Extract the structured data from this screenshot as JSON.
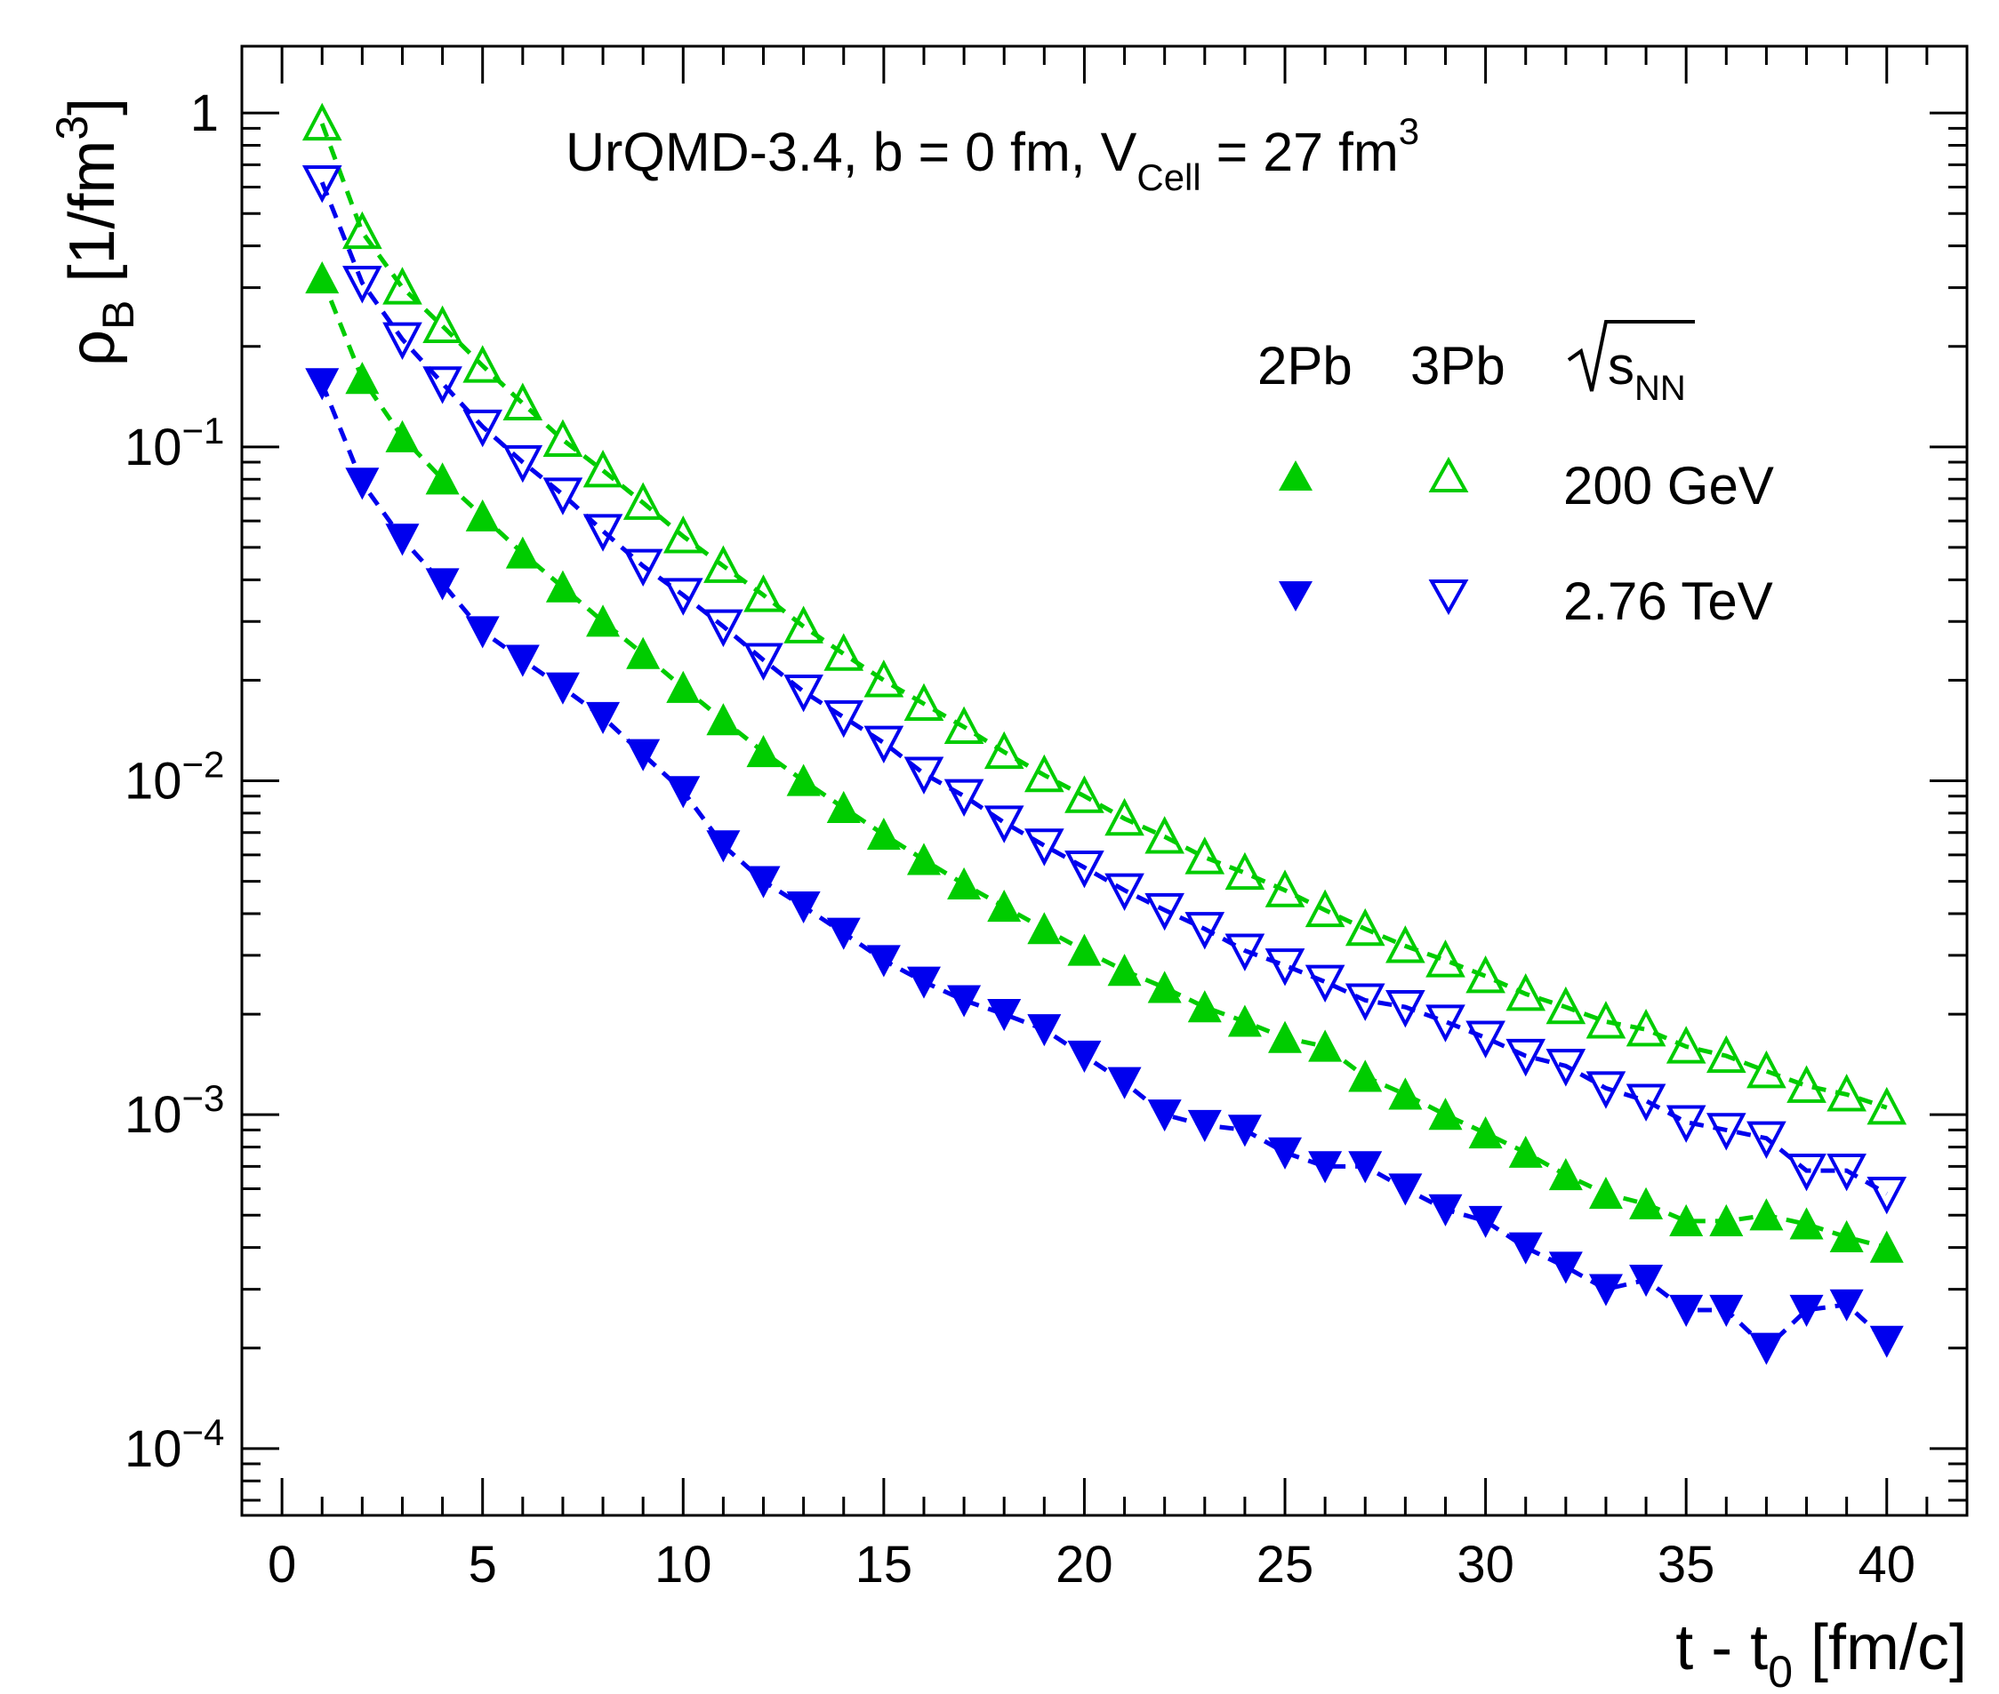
{
  "chart_data": {
    "type": "scatter",
    "title_parts": {
      "main": "UrQMD-3.4, b = 0 fm, V",
      "sub": "Cell",
      "rest": " = 27 fm",
      "sup": "3"
    },
    "xlabel_parts": {
      "main": "t - t",
      "sub": "0",
      "rest": " [fm/c]"
    },
    "ylabel_parts": {
      "main": "ρ",
      "sub": "B",
      "rest": " [1/fm",
      "sup": "3",
      "end": "]"
    },
    "xlim": [
      -1,
      42
    ],
    "ylim_log10": [
      -4.2,
      0.2
    ],
    "x_ticks": [
      0,
      5,
      10,
      15,
      20,
      25,
      30,
      35,
      40
    ],
    "x_tick_labels": [
      "0",
      "5",
      "10",
      "15",
      "20",
      "25",
      "30",
      "35",
      "40"
    ],
    "y_ticks_log10": [
      0,
      -1,
      -2,
      -3,
      -4
    ],
    "y_tick_labels": [
      {
        "base": "1",
        "exp": ""
      },
      {
        "base": "10",
        "exp": "−1"
      },
      {
        "base": "10",
        "exp": "−2"
      },
      {
        "base": "10",
        "exp": "−3"
      },
      {
        "base": "10",
        "exp": "−4"
      }
    ],
    "legend": {
      "col1": "2Pb",
      "col2": "3Pb",
      "col3_base": "s",
      "col3_sub": "NN",
      "row1": "200 GeV",
      "row2": "2.76 TeV"
    },
    "x": [
      1,
      2,
      3,
      4,
      5,
      6,
      7,
      8,
      9,
      10,
      11,
      12,
      13,
      14,
      15,
      16,
      17,
      18,
      19,
      20,
      21,
      22,
      23,
      24,
      25,
      26,
      27,
      28,
      29,
      30,
      31,
      32,
      33,
      34,
      35,
      36,
      37,
      38,
      39,
      40
    ],
    "series": [
      {
        "name": "2Pb 200 GeV",
        "marker": "triangle-up-filled",
        "color": "#00cc00",
        "values": [
          0.32,
          0.16,
          0.107,
          0.08,
          0.062,
          0.048,
          0.038,
          0.03,
          0.024,
          0.019,
          0.0152,
          0.0122,
          0.01,
          0.0083,
          0.0069,
          0.0058,
          0.0049,
          0.0042,
          0.0036,
          0.0031,
          0.0027,
          0.0024,
          0.0021,
          0.0019,
          0.0017,
          0.0016,
          0.0013,
          0.00115,
          0.001,
          0.00088,
          0.00077,
          0.00066,
          0.00058,
          0.00054,
          0.00048,
          0.00048,
          0.0005,
          0.00047,
          0.00043,
          0.0004
        ]
      },
      {
        "name": "3Pb 200 GeV",
        "marker": "triangle-up-open",
        "color": "#00cc00",
        "values": [
          0.93,
          0.44,
          0.3,
          0.23,
          0.175,
          0.135,
          0.105,
          0.085,
          0.068,
          0.054,
          0.044,
          0.036,
          0.029,
          0.024,
          0.02,
          0.017,
          0.0145,
          0.0122,
          0.0104,
          0.009,
          0.0077,
          0.0068,
          0.0059,
          0.0053,
          0.0047,
          0.0041,
          0.0036,
          0.0032,
          0.0029,
          0.0026,
          0.0023,
          0.0021,
          0.0019,
          0.0018,
          0.0016,
          0.0015,
          0.00135,
          0.00122,
          0.00115,
          0.00105
        ]
      },
      {
        "name": "2Pb 2.76 TeV",
        "marker": "triangle-down-filled",
        "color": "#0000ee",
        "values": [
          0.155,
          0.078,
          0.053,
          0.039,
          0.028,
          0.023,
          0.019,
          0.0155,
          0.012,
          0.0093,
          0.0064,
          0.005,
          0.0042,
          0.0035,
          0.0029,
          0.0025,
          0.0022,
          0.002,
          0.0018,
          0.0015,
          0.00125,
          0.001,
          0.00093,
          0.0009,
          0.00077,
          0.0007,
          0.0007,
          0.0006,
          0.00052,
          0.00048,
          0.0004,
          0.00035,
          0.0003,
          0.00032,
          0.00026,
          0.00026,
          0.0002,
          0.00026,
          0.00027,
          0.00021
        ]
      },
      {
        "name": "3Pb 2.76 TeV",
        "marker": "triangle-down-open",
        "color": "#0000ee",
        "values": [
          0.62,
          0.31,
          0.21,
          0.155,
          0.115,
          0.09,
          0.072,
          0.056,
          0.044,
          0.036,
          0.029,
          0.023,
          0.0185,
          0.0155,
          0.013,
          0.0105,
          0.009,
          0.0075,
          0.0064,
          0.0055,
          0.0047,
          0.0041,
          0.0036,
          0.0031,
          0.0028,
          0.0025,
          0.0022,
          0.0021,
          0.0019,
          0.0017,
          0.0015,
          0.0014,
          0.0012,
          0.0011,
          0.00095,
          0.0009,
          0.00085,
          0.00068,
          0.00068,
          0.00058
        ]
      }
    ]
  }
}
